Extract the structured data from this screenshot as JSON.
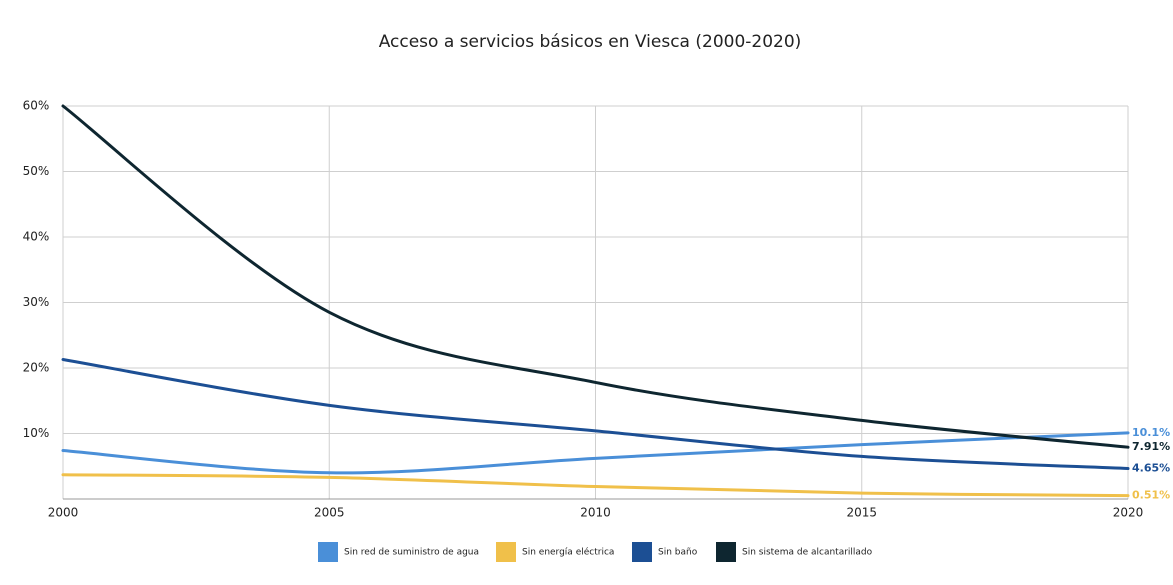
{
  "chart_data": {
    "type": "line",
    "title": "Acceso a servicios básicos en Viesca (2000-2020)",
    "x": [
      2000,
      2005,
      2010,
      2015,
      2020
    ],
    "series": [
      {
        "name": "Sin red de suministro de agua",
        "color": "#4a8fd8",
        "values": [
          7.4,
          4.0,
          6.2,
          8.3,
          10.1
        ],
        "value_labels": [
          null,
          null,
          null,
          null,
          "10.1%"
        ]
      },
      {
        "name": "Sin energía eléctrica",
        "color": "#f0c04a",
        "values": [
          3.7,
          3.3,
          1.9,
          0.9,
          0.51
        ],
        "value_labels": [
          null,
          null,
          null,
          null,
          "0.51%"
        ]
      },
      {
        "name": "Sin baño",
        "color": "#1c4f94",
        "values": [
          21.3,
          14.3,
          10.4,
          6.5,
          4.65
        ],
        "value_labels": [
          null,
          null,
          null,
          null,
          "4.65%"
        ]
      },
      {
        "name": "Sin sistema de alcantarillado",
        "color": "#0e2630",
        "values": [
          60,
          28.5,
          17.8,
          12,
          7.91
        ],
        "value_labels": [
          null,
          null,
          null,
          null,
          "7.91%"
        ]
      }
    ],
    "xlim": [
      2000,
      2020
    ],
    "xticks": [
      2000,
      2005,
      2010,
      2015,
      2020
    ],
    "ylim": [
      0,
      60
    ],
    "yticks": [
      {
        "value": 10,
        "label": "10%"
      },
      {
        "value": 20,
        "label": "20%"
      },
      {
        "value": 30,
        "label": "30%"
      },
      {
        "value": 40,
        "label": "40%"
      },
      {
        "value": 50,
        "label": "50%"
      },
      {
        "value": 60,
        "label": "60%"
      }
    ],
    "grid": true,
    "legend": "bottom"
  }
}
